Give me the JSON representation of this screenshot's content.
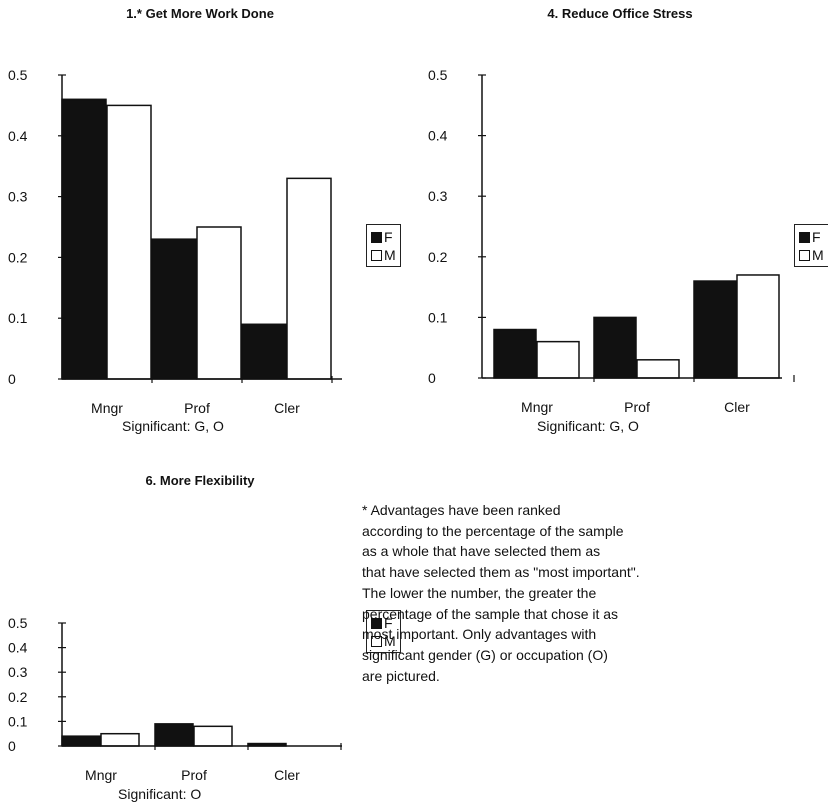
{
  "chart_data": [
    {
      "type": "bar",
      "title": "1.* Get More Work Done",
      "categories": [
        "Mngr",
        "Prof",
        "Cler"
      ],
      "series": [
        {
          "name": "F",
          "values": [
            0.46,
            0.23,
            0.09
          ]
        },
        {
          "name": "M",
          "values": [
            0.45,
            0.25,
            0.33
          ]
        }
      ],
      "ylim": [
        0,
        0.5
      ],
      "yticks": [
        "0",
        "0.1",
        "0.2",
        "0.3",
        "0.4",
        "0.5"
      ],
      "annotation": "Significant:  G, O",
      "legend": "right"
    },
    {
      "type": "bar",
      "title": "4.  Reduce Office Stress",
      "categories": [
        "Mngr",
        "Prof",
        "Cler"
      ],
      "series": [
        {
          "name": "F",
          "values": [
            0.08,
            0.1,
            0.16
          ]
        },
        {
          "name": "M",
          "values": [
            0.06,
            0.03,
            0.17
          ]
        }
      ],
      "ylim": [
        0,
        0.5
      ],
      "yticks": [
        "0",
        "0.1",
        "0.2",
        "0.3",
        "0.4",
        "0.5"
      ],
      "annotation": "Significant:  G, O",
      "legend": "right"
    },
    {
      "type": "bar",
      "title": "6.  More Flexibility",
      "categories": [
        "Mngr",
        "Prof",
        "Cler"
      ],
      "series": [
        {
          "name": "F",
          "values": [
            0.04,
            0.09,
            0.01
          ]
        },
        {
          "name": "M",
          "values": [
            0.05,
            0.08,
            0.0
          ]
        }
      ],
      "ylim": [
        0,
        0.5
      ],
      "yticks": [
        "0",
        "0.1",
        "0.2",
        "0.3",
        "0.4",
        "0.5"
      ],
      "annotation": "Significant:  O",
      "legend": "right"
    }
  ],
  "colors": {
    "F": "#111111",
    "M": "#ffffff",
    "outline": "#111111"
  },
  "footnote": [
    "*  Advantages have been ranked",
    "according to the percentage of the sample",
    "as a whole that have selected them as",
    "that have selected them as \"most important\".",
    "The lower the number, the greater the",
    "percentage of the sample that chose it as",
    "most important.  Only advantages with",
    "significant gender (G) or occupation (O)",
    "are pictured."
  ]
}
